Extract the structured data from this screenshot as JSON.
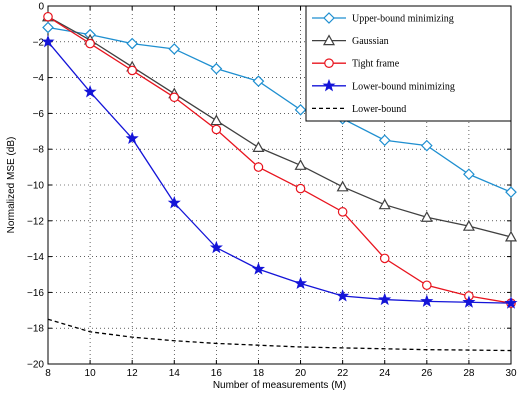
{
  "chart_data": {
    "type": "line",
    "xlabel": "Number of measurements (M)",
    "ylabel": "Normalized MSE (dB)",
    "xlim": [
      8,
      30
    ],
    "ylim": [
      -20,
      0
    ],
    "xticks": [
      8,
      10,
      12,
      14,
      16,
      18,
      20,
      22,
      24,
      26,
      28,
      30
    ],
    "yticks": [
      0,
      -2,
      -4,
      -6,
      -8,
      -10,
      -12,
      -14,
      -16,
      -18,
      -20
    ],
    "grid": true,
    "legend_position": "top-right",
    "x": [
      8,
      10,
      12,
      14,
      16,
      18,
      20,
      22,
      24,
      26,
      28,
      30
    ],
    "series": [
      {
        "name": "Upper-bound minimizing",
        "color": "#1f8fd0",
        "marker": "diamond",
        "line": "solid",
        "values": [
          -1.2,
          -1.6,
          -2.1,
          -2.4,
          -3.5,
          -4.2,
          -5.8,
          -6.3,
          -7.5,
          -7.8,
          -9.4,
          -10.4
        ]
      },
      {
        "name": "Gaussian",
        "color": "#404040",
        "marker": "triangle",
        "line": "solid",
        "values": [
          -0.6,
          -1.9,
          -3.4,
          -4.9,
          -6.4,
          -7.9,
          -8.9,
          -10.1,
          -11.1,
          -11.8,
          -12.3,
          -12.9
        ]
      },
      {
        "name": "Tight frame",
        "color": "#e8141e",
        "marker": "circle",
        "line": "solid",
        "values": [
          -0.6,
          -2.1,
          -3.6,
          -5.1,
          -6.9,
          -9.0,
          -10.2,
          -11.5,
          -14.1,
          -15.6,
          -16.2,
          -16.6
        ]
      },
      {
        "name": "Lower-bound minimizing",
        "color": "#1414d8",
        "marker": "star",
        "line": "solid",
        "values": [
          -2.0,
          -4.8,
          -7.4,
          -11.0,
          -13.5,
          -14.7,
          -15.5,
          -16.2,
          -16.4,
          -16.5,
          -16.55,
          -16.6
        ]
      },
      {
        "name": "Lower-bound",
        "color": "#000000",
        "marker": "none",
        "line": "dashed",
        "values": [
          -17.5,
          -18.2,
          -18.5,
          -18.7,
          -18.85,
          -18.95,
          -19.05,
          -19.1,
          -19.15,
          -19.2,
          -19.22,
          -19.25
        ]
      }
    ]
  }
}
